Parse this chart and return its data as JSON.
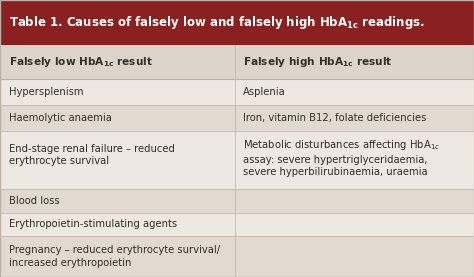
{
  "title": "Table 1. Causes of falsely low and falsely high HbA$_{1c}$ readings.",
  "title_plain": "Table 1. Causes of falsely low and falsely high HbA",
  "title_sub": "1c",
  "title_end": " readings.",
  "title_bg": "#8B2020",
  "title_color": "#FFFFFF",
  "header_col1": "Falsely low HbA$_{1c}$ result",
  "header_col2": "Falsely high HbA$_{1c}$ result",
  "header_bg": "#DDD5CC",
  "row_bg_light": "#EDE8E2",
  "row_bg_mid": "#E2DAD0",
  "border_color": "#BDB0A4",
  "text_color": "#333028",
  "outer_bg": "#D6CFC8",
  "rows": [
    [
      "Hypersplenism",
      "Asplenia"
    ],
    [
      "Haemolytic anaemia",
      "Iron, vitamin B12, folate deficiencies"
    ],
    [
      "End-stage renal failure – reduced\nerythrocyte survival",
      "Metabolic disturbances affecting HbA$_{1c}$\nassay: severe hypertriglyceridaemia,\nsevere hyperbilirubinaemia, uraemia"
    ],
    [
      "Blood loss",
      ""
    ],
    [
      "Erythropoietin-stimulating agents",
      ""
    ],
    [
      "Pregnancy – reduced erythrocyte survival/\nincreased erythropoietin",
      ""
    ]
  ],
  "col_split": 0.495,
  "figsize": [
    4.74,
    2.77
  ],
  "dpi": 100,
  "title_fontsize": 8.5,
  "header_fontsize": 7.6,
  "cell_fontsize": 7.2
}
